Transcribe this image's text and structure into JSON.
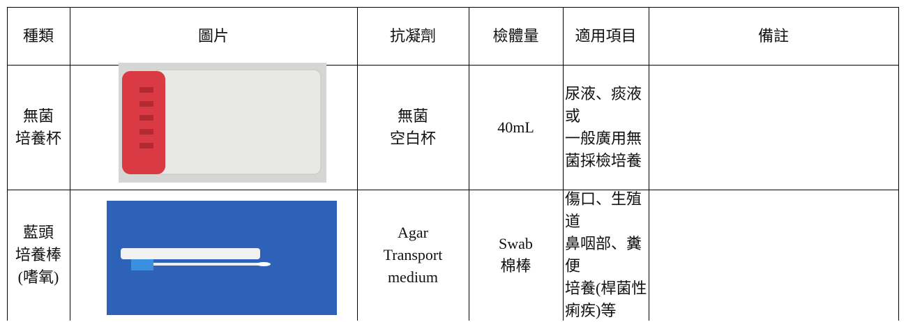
{
  "table": {
    "headers": [
      "種類",
      "圖片",
      "抗凝劑",
      "檢體量",
      "適用項目",
      "備註"
    ],
    "rows": [
      {
        "type": [
          "無菌",
          "培養杯"
        ],
        "anticoagulant": [
          "無菌",
          "空白杯"
        ],
        "volume": [
          "40mL"
        ],
        "usage": [
          "尿液、痰液或",
          "一般廣用無",
          "菌採檢培養"
        ]
      },
      {
        "type": [
          "藍頭",
          "培養棒",
          "(嗜氧)"
        ],
        "anticoagulant": [
          "Agar",
          "Transport",
          "medium"
        ],
        "volume": [
          "Swab",
          "棉棒"
        ],
        "usage": [
          "傷口、生殖道",
          "鼻咽部、糞便",
          "培養(桿菌性",
          "痢疾)等"
        ]
      }
    ]
  }
}
